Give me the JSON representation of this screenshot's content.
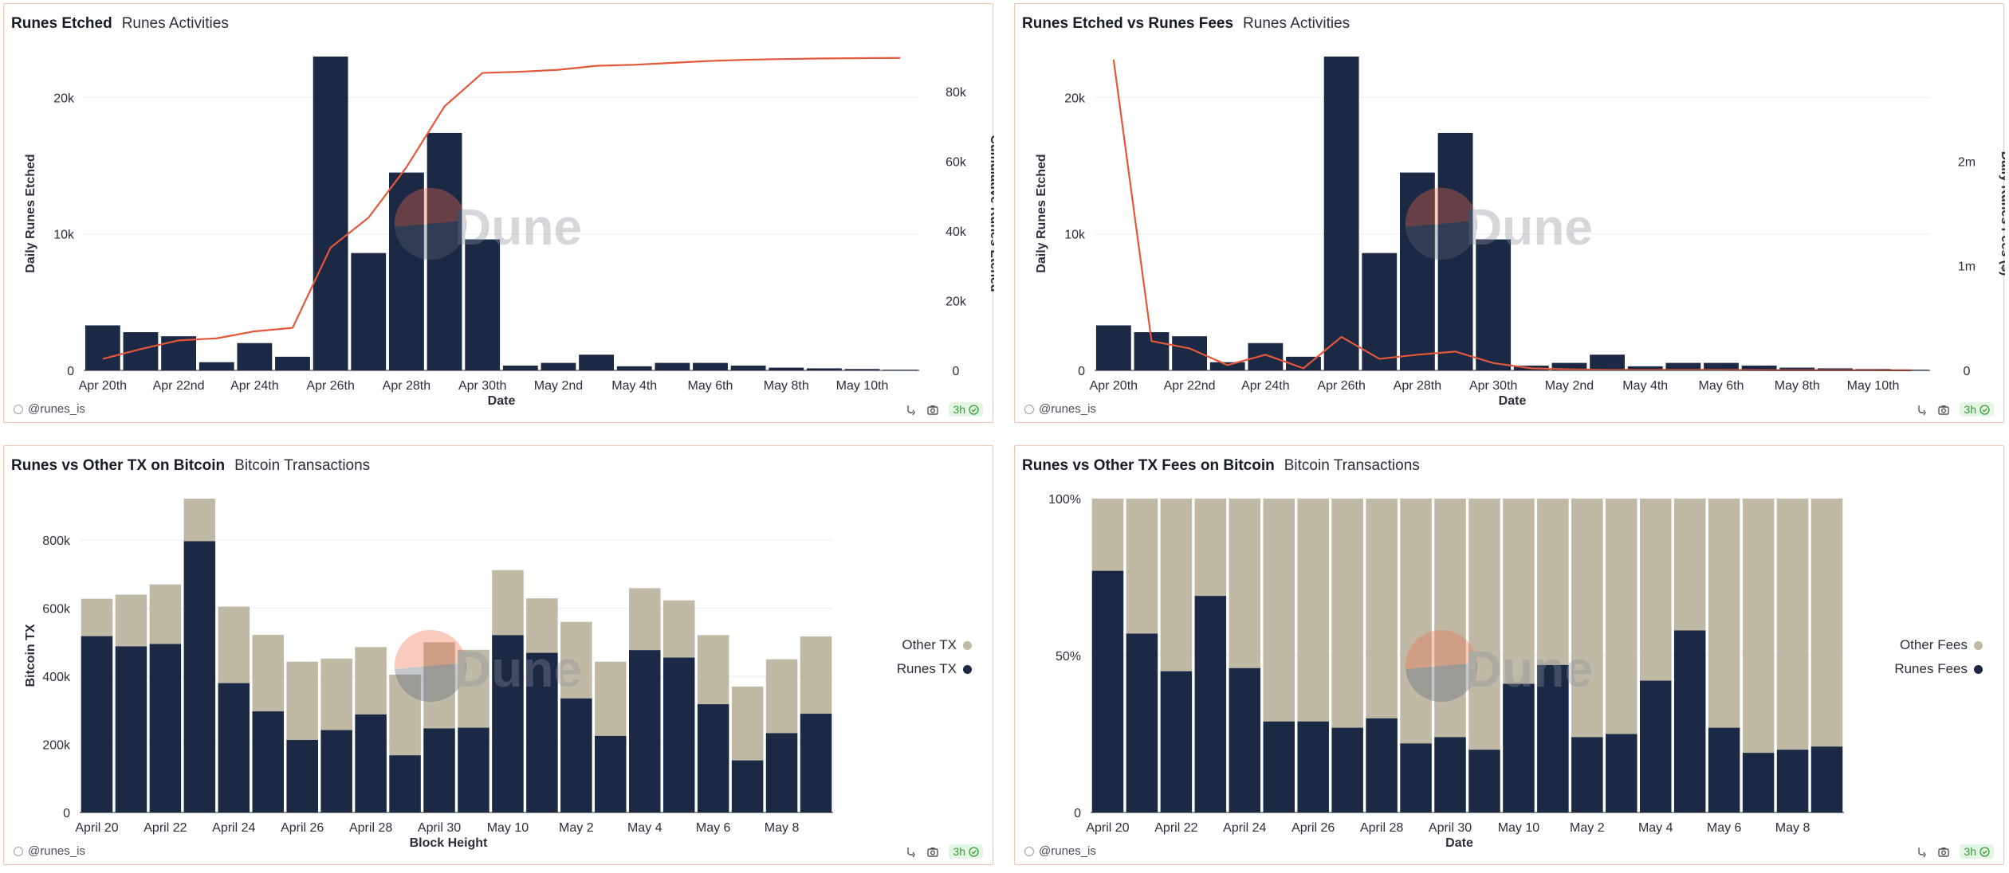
{
  "author": "@runes_is",
  "badge": "3h",
  "colors": {
    "bar": "#1c2945",
    "line": "#e4573a",
    "other": "#bfb9a6",
    "grid": "#eceef1",
    "border": "#f2c3b3"
  },
  "panels": [
    {
      "title": "Runes Etched",
      "subtitle": "Runes Activities"
    },
    {
      "title": "Runes Etched vs Runes Fees",
      "subtitle": "Runes Activities"
    },
    {
      "title": "Runes vs Other TX on Bitcoin",
      "subtitle": "Bitcoin Transactions"
    },
    {
      "title": "Runes vs Other TX Fees on Bitcoin",
      "subtitle": "Bitcoin Transactions"
    }
  ],
  "chart_data": [
    {
      "type": "bar",
      "categories": [
        "Apr 20",
        "Apr 21",
        "Apr 22",
        "Apr 23",
        "Apr 24",
        "Apr 25",
        "Apr 26",
        "Apr 27",
        "Apr 28",
        "Apr 29",
        "Apr 30",
        "May 1",
        "May 2",
        "May 3",
        "May 4",
        "May 5",
        "May 6",
        "May 7",
        "May 8",
        "May 9",
        "May 10",
        "May 11"
      ],
      "tick_labels": [
        "Apr 20th",
        "Apr 22nd",
        "Apr 24th",
        "Apr 26th",
        "Apr 28th",
        "Apr 30th",
        "May 2nd",
        "May 4th",
        "May 6th",
        "May 8th",
        "May 10th"
      ],
      "series": [
        {
          "name": "",
          "axis": "left",
          "values": [
            3300,
            2800,
            2500,
            600,
            2000,
            1000,
            23000,
            8600,
            14500,
            17400,
            9600,
            350,
            550,
            1150,
            300,
            550,
            550,
            350,
            200,
            150,
            100,
            50
          ]
        },
        {
          "name": "",
          "axis": "right",
          "kind": "line",
          "values": [
            3300,
            6100,
            8600,
            9200,
            11200,
            12200,
            35200,
            43800,
            58300,
            75700,
            85300,
            85650,
            86200,
            87350,
            87650,
            88200,
            88750,
            89100,
            89300,
            89450,
            89550,
            89600
          ]
        }
      ],
      "xlabel": "Date",
      "ylabel": "Daily Runes Etched",
      "y2label": "Cumulative Runes Etched",
      "ylim": [
        0,
        23000
      ],
      "y2lim": [
        0,
        90000
      ],
      "yticks": [
        0,
        10000,
        20000
      ],
      "ytick_labels": [
        "0",
        "10k",
        "20k"
      ],
      "y2ticks": [
        0,
        20000,
        40000,
        60000,
        80000
      ],
      "y2tick_labels": [
        "0",
        "20k",
        "40k",
        "60k",
        "80k"
      ],
      "grid": true
    },
    {
      "type": "bar",
      "categories": [
        "Apr 20",
        "Apr 21",
        "Apr 22",
        "Apr 23",
        "Apr 24",
        "Apr 25",
        "Apr 26",
        "Apr 27",
        "Apr 28",
        "Apr 29",
        "Apr 30",
        "May 1",
        "May 2",
        "May 3",
        "May 4",
        "May 5",
        "May 6",
        "May 7",
        "May 8",
        "May 9",
        "May 10",
        "May 11"
      ],
      "tick_labels": [
        "Apr 20th",
        "Apr 22nd",
        "Apr 24th",
        "Apr 26th",
        "Apr 28th",
        "Apr 30th",
        "May 2nd",
        "May 4th",
        "May 6th",
        "May 8th",
        "May 10th"
      ],
      "series": [
        {
          "name": "",
          "axis": "left",
          "values": [
            3300,
            2800,
            2500,
            600,
            2000,
            1000,
            23000,
            8600,
            14500,
            17400,
            9600,
            350,
            550,
            1150,
            300,
            550,
            550,
            350,
            200,
            150,
            100,
            50
          ]
        },
        {
          "name": "",
          "axis": "right",
          "kind": "line",
          "values": [
            2970000,
            280000,
            210000,
            50000,
            150000,
            20000,
            320000,
            110000,
            150000,
            180000,
            70000,
            20000,
            10000,
            5000,
            5000,
            5000,
            5000,
            3000,
            2000,
            2000,
            2000,
            1000
          ]
        }
      ],
      "xlabel": "Date",
      "ylabel": "Daily Runes Etched",
      "y2label": "Daily Runes Fees ($)",
      "ylim": [
        0,
        23000
      ],
      "y2lim": [
        0,
        3000000
      ],
      "yticks": [
        0,
        10000,
        20000
      ],
      "ytick_labels": [
        "0",
        "10k",
        "20k"
      ],
      "y2ticks": [
        0,
        1000000,
        2000000
      ],
      "y2tick_labels": [
        "0",
        "1m",
        "2m"
      ],
      "grid": true
    },
    {
      "type": "bar",
      "stacked": true,
      "categories": [
        "April 20",
        "April 21",
        "April 22",
        "April 23",
        "April 24",
        "April 25",
        "April 26",
        "April 27",
        "April 28",
        "April 29",
        "April 30",
        "May 1",
        "May 10",
        "May 11",
        "May 2",
        "May 3",
        "May 4",
        "May 5",
        "May 6",
        "May 7",
        "May 8",
        "May 9"
      ],
      "tick_labels": [
        "April 20",
        "April 22",
        "April 24",
        "April 26",
        "April 28",
        "April 30",
        "May 10",
        "May 2",
        "May 4",
        "May 6",
        "May 8"
      ],
      "series": [
        {
          "name": "Runes TX",
          "values": [
            518000,
            488000,
            495000,
            797000,
            380000,
            297000,
            213000,
            242000,
            288000,
            168000,
            247000,
            249000,
            521000,
            469000,
            335000,
            225000,
            477000,
            455000,
            318000,
            153000,
            233000,
            290000
          ]
        },
        {
          "name": "Other TX",
          "values": [
            110000,
            152000,
            175000,
            125000,
            225000,
            225000,
            230000,
            210000,
            198000,
            237000,
            253000,
            229000,
            191000,
            160000,
            225000,
            218000,
            182000,
            168000,
            203000,
            217000,
            217000,
            227000
          ]
        }
      ],
      "xlabel": "Block Height",
      "ylabel": "Bitcoin TX",
      "ylim": [
        0,
        922000
      ],
      "yticks": [
        0,
        200000,
        400000,
        600000,
        800000
      ],
      "ytick_labels": [
        "0",
        "200k",
        "400k",
        "600k",
        "800k"
      ],
      "legend": "right",
      "grid": true
    },
    {
      "type": "bar",
      "stacked": true,
      "normalized": true,
      "categories": [
        "April 20",
        "April 21",
        "April 22",
        "April 23",
        "April 24",
        "April 25",
        "April 26",
        "April 27",
        "April 28",
        "April 29",
        "April 30",
        "May 1",
        "May 10",
        "May 11",
        "May 2",
        "May 3",
        "May 4",
        "May 5",
        "May 6",
        "May 7",
        "May 8",
        "May 9"
      ],
      "tick_labels": [
        "April 20",
        "April 22",
        "April 24",
        "April 26",
        "April 28",
        "April 30",
        "May 10",
        "May 2",
        "May 4",
        "May 6",
        "May 8"
      ],
      "series": [
        {
          "name": "Runes Fees",
          "values": [
            77,
            57,
            45,
            69,
            46,
            29,
            29,
            27,
            30,
            22,
            24,
            20,
            41,
            47,
            24,
            25,
            42,
            58,
            27,
            19,
            20,
            21
          ]
        },
        {
          "name": "Other Fees",
          "values": [
            23,
            43,
            55,
            31,
            54,
            71,
            71,
            73,
            70,
            78,
            76,
            80,
            59,
            53,
            76,
            75,
            58,
            42,
            73,
            81,
            80,
            79
          ]
        }
      ],
      "xlabel": "Date",
      "ylabel": "",
      "ylim": [
        0,
        100
      ],
      "yticks": [
        0,
        50,
        100
      ],
      "ytick_labels": [
        "0",
        "50%",
        "100%"
      ],
      "legend": "right",
      "grid": true
    }
  ]
}
